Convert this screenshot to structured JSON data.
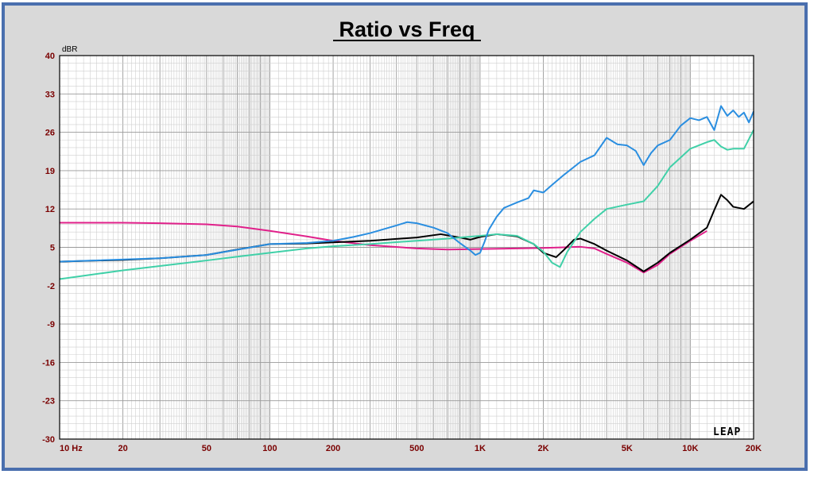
{
  "chart_data": {
    "type": "line",
    "title": "Ratio vs Freq",
    "ylabel": "dBR",
    "xlabel": "",
    "x_scale": "log",
    "xlim": [
      10,
      20000
    ],
    "ylim": [
      -30,
      40
    ],
    "grid": true,
    "y_ticks": [
      "40",
      "33",
      "26",
      "19",
      "12",
      "5",
      "-2",
      "-9",
      "-16",
      "-23",
      "-30"
    ],
    "x_ticks": [
      {
        "value": 10,
        "label": "10 Hz"
      },
      {
        "value": 20,
        "label": "20"
      },
      {
        "value": 50,
        "label": "50"
      },
      {
        "value": 100,
        "label": "100"
      },
      {
        "value": 200,
        "label": "200"
      },
      {
        "value": 500,
        "label": "500"
      },
      {
        "value": 1000,
        "label": "1K"
      },
      {
        "value": 2000,
        "label": "2K"
      },
      {
        "value": 5000,
        "label": "5K"
      },
      {
        "value": 10000,
        "label": "10K"
      },
      {
        "value": 20000,
        "label": "20K"
      }
    ],
    "logo": "LEAP",
    "series": [
      {
        "color": "#e0208a",
        "x": [
          10,
          20,
          30,
          50,
          70,
          100,
          150,
          200,
          300,
          500,
          700,
          1000,
          1500,
          2000,
          2500,
          3000,
          3500,
          4000,
          5000,
          6000,
          7000,
          8000,
          10000,
          12000
        ],
        "y": [
          9.5,
          9.5,
          9.4,
          9.2,
          8.8,
          8.0,
          7.0,
          6.2,
          5.4,
          4.8,
          4.6,
          4.7,
          4.8,
          4.9,
          5.0,
          5.1,
          4.8,
          3.8,
          2.2,
          0.4,
          1.8,
          3.8,
          6.2,
          8.0
        ]
      },
      {
        "color": "#000000",
        "x": [
          10,
          20,
          30,
          50,
          70,
          100,
          150,
          200,
          300,
          500,
          650,
          800,
          900,
          1000,
          1200,
          1500,
          1800,
          2000,
          2300,
          2500,
          2800,
          3000,
          3500,
          4000,
          5000,
          6000,
          7000,
          8000,
          10000,
          12000,
          13000,
          14000,
          15000,
          16000,
          18000,
          20000
        ],
        "y": [
          2.4,
          2.7,
          3.0,
          3.6,
          4.6,
          5.6,
          5.7,
          5.9,
          6.2,
          6.8,
          7.4,
          6.8,
          6.4,
          6.9,
          7.4,
          7.0,
          5.6,
          4.0,
          3.2,
          4.5,
          6.4,
          6.6,
          5.6,
          4.4,
          2.6,
          0.6,
          2.2,
          4.0,
          6.4,
          8.6,
          11.8,
          14.6,
          13.6,
          12.4,
          12.0,
          13.4
        ]
      },
      {
        "color": "#40d0a8",
        "x": [
          10,
          20,
          30,
          50,
          70,
          100,
          150,
          200,
          300,
          500,
          700,
          1000,
          1200,
          1500,
          1800,
          2000,
          2200,
          2400,
          2600,
          3000,
          3500,
          4000,
          5000,
          6000,
          7000,
          8000,
          10000,
          12000,
          13000,
          14000,
          15000,
          16000,
          18000,
          20000
        ],
        "y": [
          -0.8,
          0.8,
          1.6,
          2.6,
          3.3,
          4.0,
          4.8,
          5.2,
          5.6,
          6.2,
          6.6,
          7.1,
          7.4,
          7.1,
          5.6,
          4.2,
          2.2,
          1.4,
          4.2,
          7.8,
          10.2,
          12.0,
          12.8,
          13.4,
          16.2,
          19.6,
          23.0,
          24.2,
          24.6,
          23.4,
          22.8,
          23.0,
          23.0,
          26.4
        ]
      },
      {
        "color": "#2a8ee0",
        "x": [
          10,
          30,
          50,
          100,
          150,
          200,
          250,
          300,
          400,
          450,
          500,
          600,
          700,
          800,
          900,
          950,
          1000,
          1050,
          1100,
          1200,
          1300,
          1500,
          1700,
          1800,
          2000,
          2200,
          2500,
          3000,
          3500,
          4000,
          4500,
          5000,
          5500,
          6000,
          6500,
          7000,
          8000,
          9000,
          10000,
          11000,
          12000,
          13000,
          14000,
          15000,
          16000,
          17000,
          18000,
          19000,
          20000
        ],
        "y": [
          2.4,
          3.0,
          3.6,
          5.6,
          5.8,
          6.2,
          6.9,
          7.6,
          9.0,
          9.6,
          9.4,
          8.6,
          7.6,
          5.8,
          4.4,
          3.6,
          4.0,
          6.0,
          8.2,
          10.6,
          12.2,
          13.2,
          14.0,
          15.4,
          15.0,
          16.4,
          18.2,
          20.6,
          21.8,
          25.0,
          23.8,
          23.6,
          22.6,
          20.0,
          22.2,
          23.6,
          24.6,
          27.2,
          28.6,
          28.2,
          28.8,
          26.4,
          30.8,
          29.0,
          30.0,
          28.8,
          29.6,
          27.8,
          29.8
        ]
      }
    ]
  }
}
